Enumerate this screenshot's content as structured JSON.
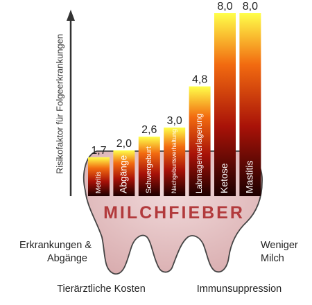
{
  "chart_data": {
    "type": "bar",
    "categories": [
      "Metritis",
      "Abgänge",
      "Schwergeburt",
      "Nachgeburtsverhaltung",
      "Labmagenverlagerung",
      "Ketose",
      "Mastitis"
    ],
    "values": [
      1.7,
      2.0,
      2.6,
      3.0,
      4.8,
      8.0,
      8.0
    ],
    "value_labels": [
      "1,7",
      "2,0",
      "2,6",
      "3,0",
      "4,8",
      "8,0",
      "8,0"
    ],
    "ylabel": "Risikofaktor für Folgeerkrankungen",
    "xlabel": "",
    "ylim": [
      0,
      8
    ],
    "grid": false,
    "legend": "none",
    "colors": {
      "bar_top": "#ffff4a",
      "bar_mid": "#f26b10",
      "bar_low": "#a81208",
      "bar_bottom": "#1c0000",
      "tooth_fill": "#e3c2c3",
      "tooth_stroke": "#444444",
      "banner_text": "#b23a3c"
    }
  },
  "banner": {
    "text": "MILCHFIEBER"
  },
  "annotations": {
    "left_line1": "Erkrankungen &",
    "left_line2": "Abgänge",
    "right_line1": "Weniger",
    "right_line2": "Milch",
    "bottom_left": "Tierärztliche Kosten",
    "bottom_right": "Immunsuppression"
  }
}
